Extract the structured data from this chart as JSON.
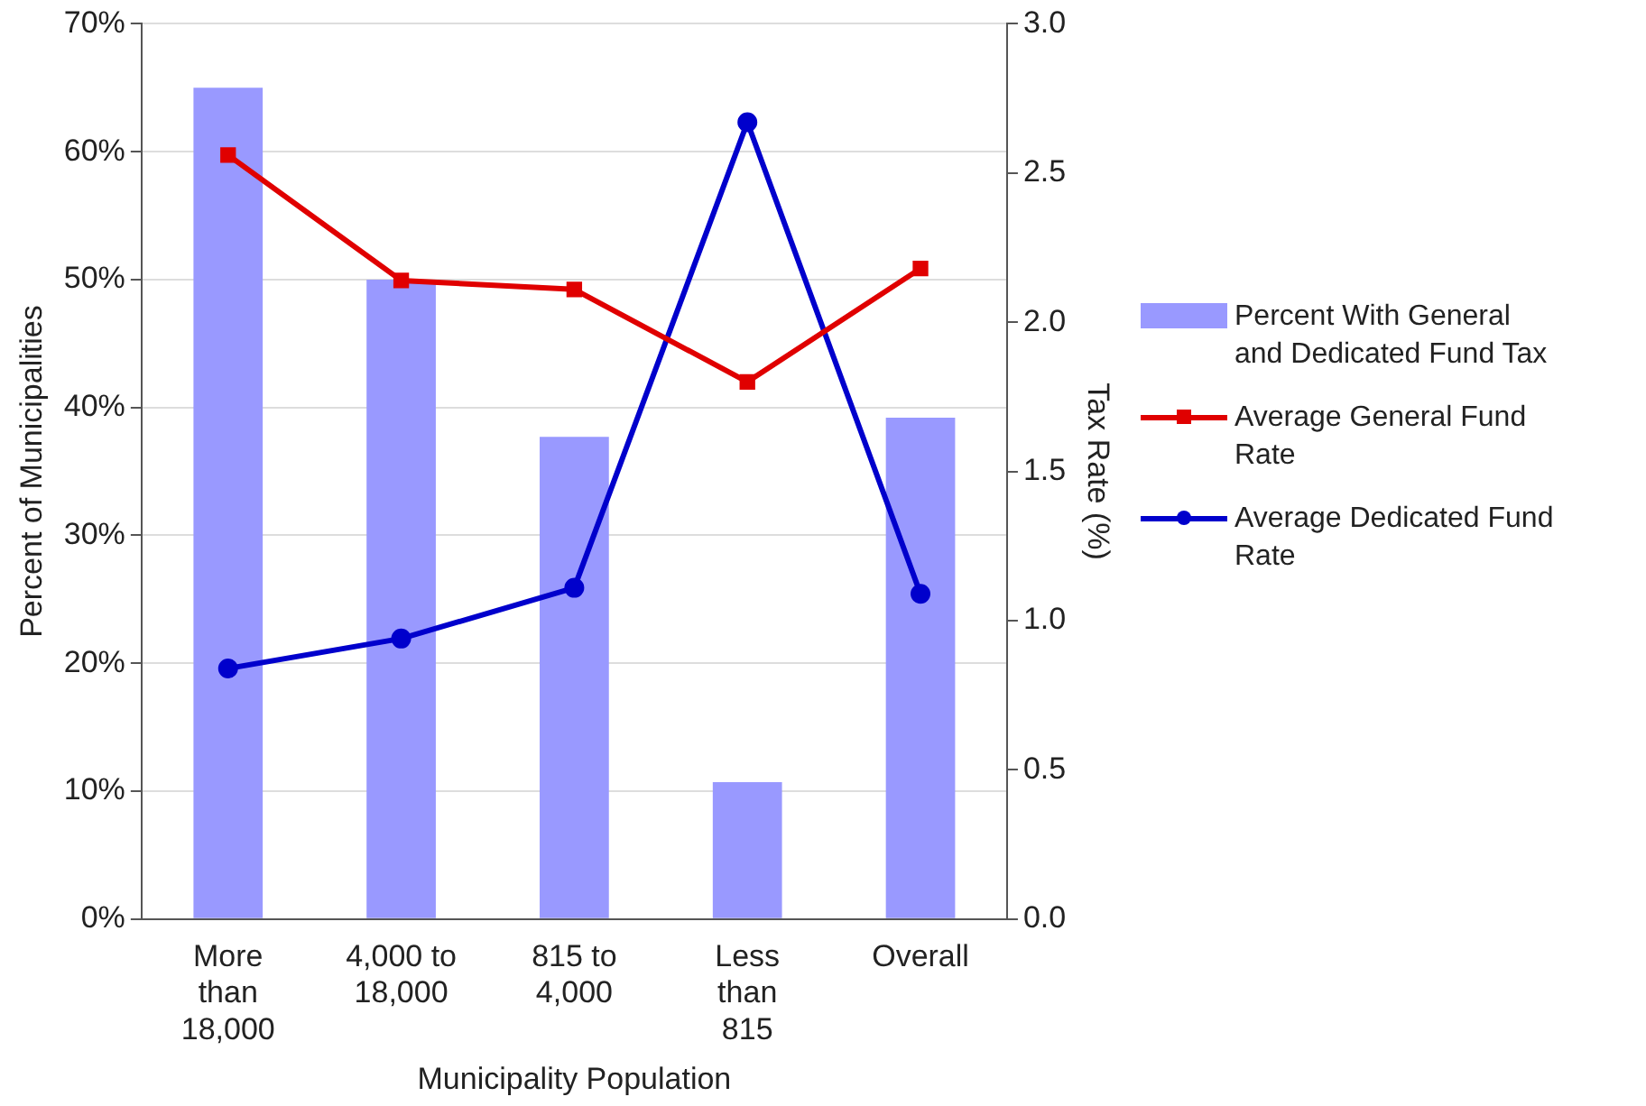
{
  "chart_data": {
    "type": "bar",
    "xlabel": "Municipality Population",
    "ylabel": "Percent of Municipalities",
    "y2label": "Tax Rate (%)",
    "categories": [
      "More than 18,000",
      "4,000 to 18,000",
      "815 to 4,000",
      "Less than 815",
      "Overall"
    ],
    "series": [
      {
        "name": "Percent With General and Dedicated Fund Tax",
        "color": "#9999ff",
        "values": [
          65,
          50,
          37.7,
          10.7,
          39.2
        ]
      },
      {
        "name": "Average General Fund Rate",
        "type": "line",
        "axis": "y2",
        "color": "#e00000",
        "marker": "square",
        "values": [
          2.56,
          2.14,
          2.11,
          1.8,
          2.18
        ]
      },
      {
        "name": "Average Dedicated Fund Rate",
        "type": "line",
        "axis": "y2",
        "color": "#0000cc",
        "marker": "circle",
        "values": [
          0.84,
          0.94,
          1.11,
          2.67,
          1.09
        ]
      }
    ],
    "ylim": [
      0,
      70
    ],
    "yticks": [
      {
        "value": 0,
        "label": "0%"
      },
      {
        "value": 10,
        "label": "10%"
      },
      {
        "value": 20,
        "label": "20%"
      },
      {
        "value": 30,
        "label": "30%"
      },
      {
        "value": 40,
        "label": "40%"
      },
      {
        "value": 50,
        "label": "50%"
      },
      {
        "value": 60,
        "label": "60%"
      },
      {
        "value": 70,
        "label": "70%"
      }
    ],
    "y2lim": [
      0,
      3
    ],
    "y2ticks": [
      {
        "value": 0,
        "label": "0.0"
      },
      {
        "value": 0.5,
        "label": "0.5"
      },
      {
        "value": 1,
        "label": "1.0"
      },
      {
        "value": 1.5,
        "label": "1.5"
      },
      {
        "value": 2,
        "label": "2.0"
      },
      {
        "value": 2.5,
        "label": "2.5"
      },
      {
        "value": 3,
        "label": "3.0"
      }
    ],
    "grid": "y",
    "legend": "right"
  }
}
